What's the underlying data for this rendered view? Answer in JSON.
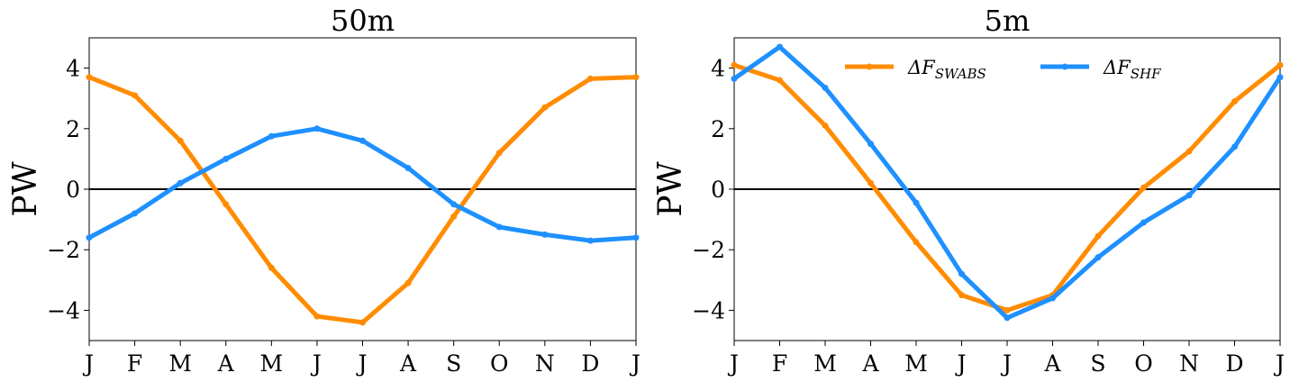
{
  "colors": {
    "swabs": "#ff8c00",
    "shf": "#1e90ff",
    "zero_line": "#000000",
    "axes": "#000000"
  },
  "chart_data": [
    {
      "type": "line",
      "title": "50m",
      "ylabel": "PW",
      "xlabel": "",
      "categories": [
        "J",
        "F",
        "M",
        "A",
        "M",
        "J",
        "J",
        "A",
        "S",
        "O",
        "N",
        "D",
        "J"
      ],
      "ylim": [
        -5,
        5
      ],
      "yticks": [
        -4,
        -2,
        0,
        2,
        4
      ],
      "ytick_labels": [
        "−4",
        "−2",
        "0",
        "2",
        "4"
      ],
      "zero_line": true,
      "grid": false,
      "series": [
        {
          "name": "SWABS",
          "color": "#ff8c00",
          "values": [
            3.7,
            3.1,
            1.6,
            -0.5,
            -2.6,
            -4.2,
            -4.4,
            -3.1,
            -0.9,
            1.2,
            2.7,
            3.65,
            3.7
          ]
        },
        {
          "name": "SHF",
          "color": "#1e90ff",
          "values": [
            -1.6,
            -0.8,
            0.2,
            1.0,
            1.75,
            2.0,
            1.6,
            0.7,
            -0.5,
            -1.25,
            -1.5,
            -1.7,
            -1.6
          ]
        }
      ]
    },
    {
      "type": "line",
      "title": "5m",
      "ylabel": "PW",
      "xlabel": "",
      "categories": [
        "J",
        "F",
        "M",
        "A",
        "M",
        "J",
        "J",
        "A",
        "S",
        "O",
        "N",
        "D",
        "J"
      ],
      "ylim": [
        -5,
        5
      ],
      "yticks": [
        -4,
        -2,
        0,
        2,
        4
      ],
      "ytick_labels": [
        "−4",
        "−2",
        "0",
        "2",
        "4"
      ],
      "zero_line": true,
      "grid": false,
      "legend": {
        "placement": "top-center",
        "entries": [
          {
            "prefix": "ΔF",
            "sub": "SWABS",
            "color": "#ff8c00"
          },
          {
            "prefix": "ΔF",
            "sub": "SHF",
            "color": "#1e90ff"
          }
        ]
      },
      "series": [
        {
          "name": "SWABS",
          "color": "#ff8c00",
          "values": [
            4.1,
            3.6,
            2.1,
            0.2,
            -1.75,
            -3.5,
            -4.0,
            -3.5,
            -1.55,
            0.05,
            1.25,
            2.9,
            4.1
          ]
        },
        {
          "name": "SHF",
          "color": "#1e90ff",
          "values": [
            3.65,
            4.7,
            3.35,
            1.5,
            -0.45,
            -2.8,
            -4.25,
            -3.6,
            -2.25,
            -1.1,
            -0.2,
            1.4,
            3.7
          ]
        }
      ]
    }
  ]
}
